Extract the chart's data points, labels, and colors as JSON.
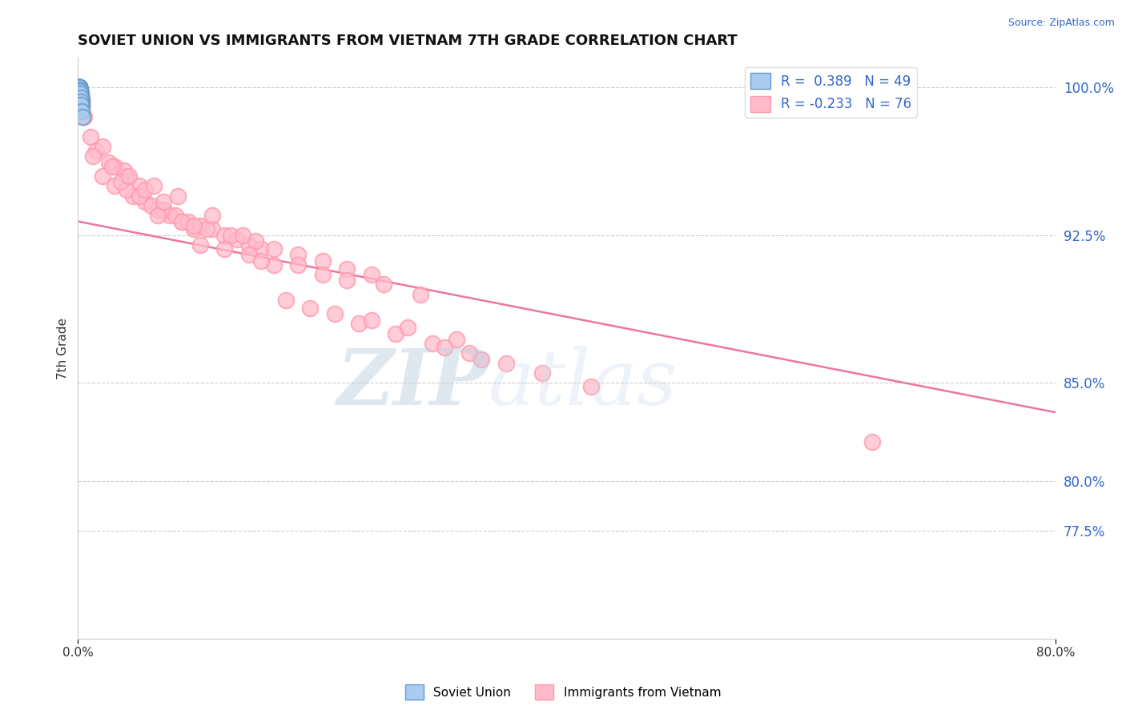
{
  "title": "SOVIET UNION VS IMMIGRANTS FROM VIETNAM 7TH GRADE CORRELATION CHART",
  "source": "Source: ZipAtlas.com",
  "ylabel": "7th Grade",
  "xlim": [
    0.0,
    80.0
  ],
  "ylim": [
    72.0,
    101.5
  ],
  "yticks": [
    77.5,
    80.0,
    85.0,
    92.5,
    100.0
  ],
  "ytick_labels": [
    "77.5%",
    "80.0%",
    "85.0%",
    "92.5%",
    "100.0%"
  ],
  "xticks": [
    0.0,
    80.0
  ],
  "xtick_labels": [
    "0.0%",
    "80.0%"
  ],
  "legend_label1": "Soviet Union",
  "legend_label2": "Immigrants from Vietnam",
  "blue_color": "#6699CC",
  "pink_color": "#FF99AA",
  "blue_face": "#AACCEE",
  "pink_face": "#FFBBCC",
  "trend_color": "#EE7799",
  "blue_x": [
    0.05,
    0.08,
    0.1,
    0.12,
    0.15,
    0.18,
    0.2,
    0.22,
    0.25,
    0.28,
    0.06,
    0.09,
    0.11,
    0.13,
    0.16,
    0.19,
    0.21,
    0.23,
    0.26,
    0.29,
    0.07,
    0.1,
    0.12,
    0.14,
    0.17,
    0.2,
    0.24,
    0.27,
    0.3,
    0.05,
    0.08,
    0.11,
    0.14,
    0.16,
    0.19,
    0.22,
    0.25,
    0.28,
    0.31,
    0.06,
    0.09,
    0.13,
    0.15,
    0.18,
    0.21,
    0.24,
    0.27,
    0.32,
    0.35
  ],
  "blue_y": [
    100.0,
    100.0,
    100.0,
    100.0,
    99.9,
    99.8,
    99.7,
    99.6,
    99.5,
    99.4,
    100.0,
    100.0,
    100.0,
    99.9,
    99.8,
    99.7,
    99.6,
    99.5,
    99.4,
    99.3,
    100.0,
    100.0,
    100.0,
    99.9,
    99.8,
    99.7,
    99.5,
    99.3,
    99.1,
    100.0,
    100.0,
    100.0,
    99.9,
    99.8,
    99.7,
    99.5,
    99.3,
    99.1,
    98.9,
    100.0,
    100.0,
    99.9,
    99.8,
    99.7,
    99.5,
    99.3,
    99.1,
    98.8,
    98.5
  ],
  "pink_x": [
    0.5,
    1.0,
    1.5,
    2.0,
    3.0,
    4.0,
    5.0,
    1.2,
    2.5,
    3.8,
    2.0,
    3.0,
    4.5,
    5.5,
    6.5,
    7.5,
    8.5,
    9.5,
    4.0,
    5.0,
    6.0,
    7.0,
    8.0,
    9.0,
    10.0,
    11.0,
    12.0,
    13.0,
    14.0,
    15.0,
    6.5,
    8.5,
    10.5,
    12.5,
    14.5,
    16.0,
    18.0,
    20.0,
    22.0,
    24.0,
    10.0,
    12.0,
    14.0,
    16.0,
    20.0,
    22.0,
    15.0,
    18.0,
    25.0,
    28.0,
    17.0,
    19.0,
    21.0,
    23.0,
    26.0,
    29.0,
    32.0,
    24.0,
    27.0,
    31.0,
    35.0,
    30.0,
    33.0,
    38.0,
    42.0,
    65.0,
    3.5,
    5.5,
    7.0,
    9.5,
    2.8,
    4.2,
    6.2,
    8.2,
    11.0,
    13.5
  ],
  "pink_y": [
    98.5,
    97.5,
    96.8,
    97.0,
    96.0,
    95.5,
    95.0,
    96.5,
    96.2,
    95.8,
    95.5,
    95.0,
    94.5,
    94.2,
    93.8,
    93.5,
    93.2,
    92.8,
    94.8,
    94.5,
    94.0,
    93.8,
    93.5,
    93.2,
    93.0,
    92.8,
    92.5,
    92.3,
    92.0,
    91.8,
    93.5,
    93.2,
    92.8,
    92.5,
    92.2,
    91.8,
    91.5,
    91.2,
    90.8,
    90.5,
    92.0,
    91.8,
    91.5,
    91.0,
    90.5,
    90.2,
    91.2,
    91.0,
    90.0,
    89.5,
    89.2,
    88.8,
    88.5,
    88.0,
    87.5,
    87.0,
    86.5,
    88.2,
    87.8,
    87.2,
    86.0,
    86.8,
    86.2,
    85.5,
    84.8,
    82.0,
    95.2,
    94.8,
    94.2,
    93.0,
    96.0,
    95.5,
    95.0,
    94.5,
    93.5,
    92.5
  ],
  "trend_x0": 0.0,
  "trend_x1": 80.0,
  "trend_y0": 93.2,
  "trend_y1": 83.5
}
